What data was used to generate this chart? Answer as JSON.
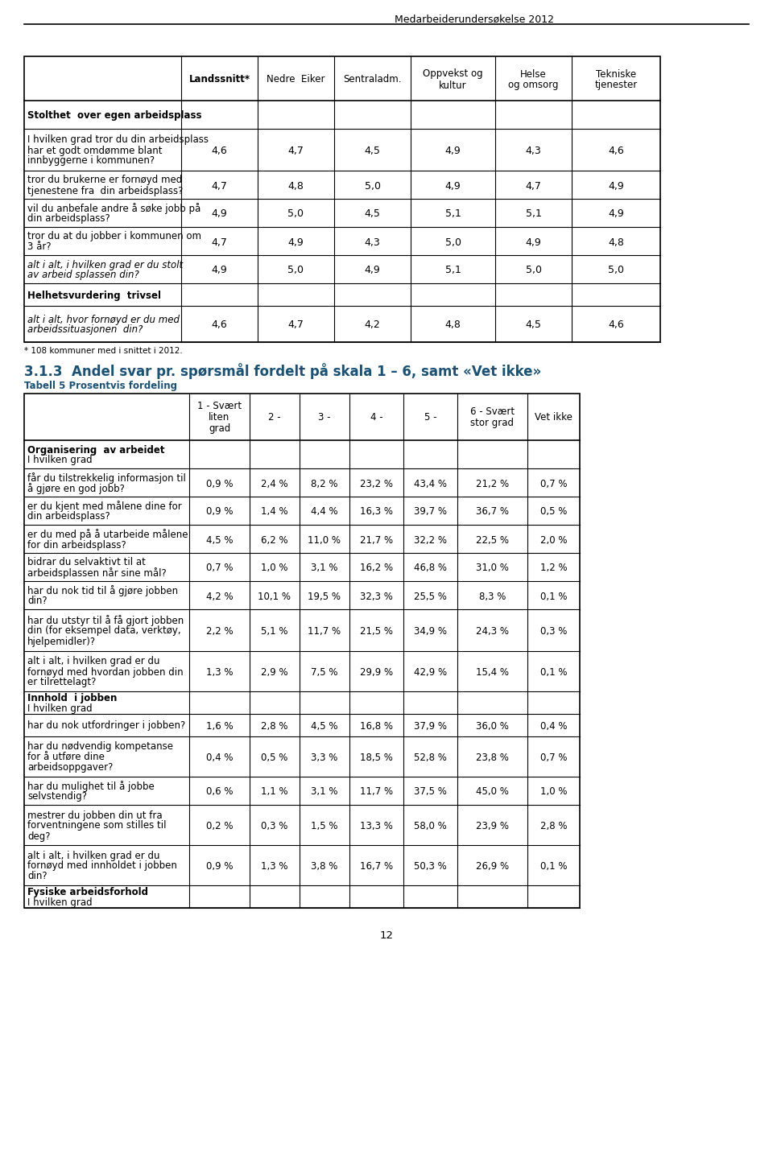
{
  "page_header": "Medarbeiderundersøkelse 2012",
  "page_number": "12",
  "table1": {
    "col_headers": [
      "",
      "Landssnitt*",
      "Nedre  Eiker",
      "Sentraladm.",
      "Oppvekst og\nkultur",
      "Helse\nog omsorg",
      "Tekniske\ntjenester"
    ],
    "rows": [
      {
        "label": "Stolthet  over egen arbeidsplass",
        "values": [],
        "bold": true,
        "italic": false,
        "section_header": true
      },
      {
        "label": "I hvilken grad tror du din arbeidsplass\nhar et godt omdømme blant\ninnbyggerne i kommunen?",
        "values": [
          "4,6",
          "4,7",
          "4,5",
          "4,9",
          "4,3",
          "4,6"
        ],
        "bold": false,
        "italic": false
      },
      {
        "label": "tror du brukerne er fornøyd med\ntjenestene fra  din arbeidsplass?",
        "values": [
          "4,7",
          "4,8",
          "5,0",
          "4,9",
          "4,7",
          "4,9"
        ],
        "bold": false,
        "italic": false
      },
      {
        "label": "vil du anbefale andre å søke jobb på\ndin arbeidsplass?",
        "values": [
          "4,9",
          "5,0",
          "4,5",
          "5,1",
          "5,1",
          "4,9"
        ],
        "bold": false,
        "italic": false
      },
      {
        "label": "tror du at du jobber i kommunen om\n3 år?",
        "values": [
          "4,7",
          "4,9",
          "4,3",
          "5,0",
          "4,9",
          "4,8"
        ],
        "bold": false,
        "italic": false
      },
      {
        "label": "alt i alt, i hvilken grad er du stolt\nav arbeid splassen din?",
        "values": [
          "4,9",
          "5,0",
          "4,9",
          "5,1",
          "5,0",
          "5,0"
        ],
        "bold": false,
        "italic": true
      },
      {
        "label": "Helhetsvurdering  trivsel",
        "values": [],
        "bold": true,
        "italic": false,
        "section_header": true
      },
      {
        "label": "alt i alt, hvor fornøyd er du med\narbeidssituasjonen  din?",
        "values": [
          "4,6",
          "4,7",
          "4,2",
          "4,8",
          "4,5",
          "4,6"
        ],
        "bold": false,
        "italic": true
      }
    ],
    "footnote": "* 108 kommuner med i snittet i 2012."
  },
  "section_heading": "3.1.3  Andel svar pr. spørsmål fordelt på skala 1 – 6, samt «Vet ikke»",
  "section_subheading": "Tabell 5 Prosentvis fordeling",
  "table2": {
    "col_headers": [
      "",
      "1 - Svært\nliten\ngrad",
      "2 -",
      "3 -",
      "4 -",
      "5 -",
      "6 - Svært\nstor grad",
      "Vet ikke"
    ],
    "rows": [
      {
        "label": "Organisering  av arbeidet\nI hvilken grad",
        "values": [],
        "bold_first": true,
        "section_header": true
      },
      {
        "label": "får du tilstrekkelig informasjon til\nå gjøre en god jobb?",
        "values": [
          "0,9 %",
          "2,4 %",
          "8,2 %",
          "23,2 %",
          "43,4 %",
          "21,2 %",
          "0,7 %"
        ]
      },
      {
        "label": "er du kjent med målene dine for\ndin arbeidsplass?",
        "values": [
          "0,9 %",
          "1,4 %",
          "4,4 %",
          "16,3 %",
          "39,7 %",
          "36,7 %",
          "0,5 %"
        ]
      },
      {
        "label": "er du med på å utarbeide målene\nfor din arbeidsplass?",
        "values": [
          "4,5 %",
          "6,2 %",
          "11,0 %",
          "21,7 %",
          "32,2 %",
          "22,5 %",
          "2,0 %"
        ]
      },
      {
        "label": "bidrar du selvaktivt til at\narbeidsplassen når sine mål?",
        "values": [
          "0,7 %",
          "1,0 %",
          "3,1 %",
          "16,2 %",
          "46,8 %",
          "31,0 %",
          "1,2 %"
        ]
      },
      {
        "label": "har du nok tid til å gjøre jobben\ndin?",
        "values": [
          "4,2 %",
          "10,1 %",
          "19,5 %",
          "32,3 %",
          "25,5 %",
          "8,3 %",
          "0,1 %"
        ]
      },
      {
        "label": "har du utstyr til å få gjort jobben\ndin (for eksempel data, verktøy,\nhjelpemidler)?",
        "values": [
          "2,2 %",
          "5,1 %",
          "11,7 %",
          "21,5 %",
          "34,9 %",
          "24,3 %",
          "0,3 %"
        ]
      },
      {
        "label": "alt i alt, i hvilken grad er du\nfornøyd med hvordan jobben din\ner tilrettelagt?",
        "values": [
          "1,3 %",
          "2,9 %",
          "7,5 %",
          "29,9 %",
          "42,9 %",
          "15,4 %",
          "0,1 %"
        ]
      },
      {
        "label": "Innhold  i jobben\nI hvilken grad",
        "values": [],
        "bold_first": true,
        "section_header": true
      },
      {
        "label": "har du nok utfordringer i jobben?",
        "values": [
          "1,6 %",
          "2,8 %",
          "4,5 %",
          "16,8 %",
          "37,9 %",
          "36,0 %",
          "0,4 %"
        ]
      },
      {
        "label": "har du nødvendig kompetanse\nfor å utføre dine\narbeidsoppgaver?",
        "values": [
          "0,4 %",
          "0,5 %",
          "3,3 %",
          "18,5 %",
          "52,8 %",
          "23,8 %",
          "0,7 %"
        ]
      },
      {
        "label": "har du mulighet til å jobbe\nselvstendig?",
        "values": [
          "0,6 %",
          "1,1 %",
          "3,1 %",
          "11,7 %",
          "37,5 %",
          "45,0 %",
          "1,0 %"
        ]
      },
      {
        "label": "mestrer du jobben din ut fra\nforventningene som stilles til\ndeg?",
        "values": [
          "0,2 %",
          "0,3 %",
          "1,5 %",
          "13,3 %",
          "58,0 %",
          "23,9 %",
          "2,8 %"
        ]
      },
      {
        "label": "alt i alt, i hvilken grad er du\nfornøyd med innholdet i jobben\ndin?",
        "values": [
          "0,9 %",
          "1,3 %",
          "3,8 %",
          "16,7 %",
          "50,3 %",
          "26,9 %",
          "0,1 %"
        ]
      },
      {
        "label": "Fysiske arbeidsforhold\nI hvilken grad",
        "values": [],
        "bold_first": true,
        "section_header": true
      }
    ]
  }
}
